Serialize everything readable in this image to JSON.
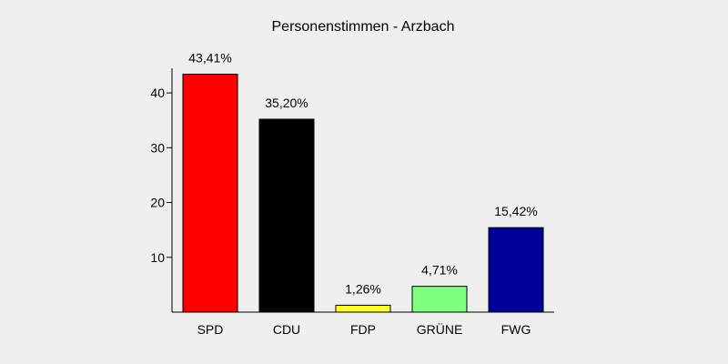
{
  "chart_data": {
    "type": "bar",
    "title": "Personenstimmen - Arzbach",
    "xlabel": "",
    "ylabel": "",
    "categories": [
      "SPD",
      "CDU",
      "FDP",
      "GRÜNE",
      "FWG"
    ],
    "values": [
      43.41,
      35.2,
      1.26,
      4.71,
      15.42
    ],
    "value_labels": [
      "43,41%",
      "35,20%",
      "1,26%",
      "4,71%",
      "15,42%"
    ],
    "colors": [
      "#ff0000",
      "#000000",
      "#ffff33",
      "#80ff80",
      "#000099"
    ],
    "yticks": [
      10,
      20,
      30,
      40
    ],
    "ylim": [
      0,
      44.5
    ],
    "grid": false,
    "legend": "none"
  }
}
